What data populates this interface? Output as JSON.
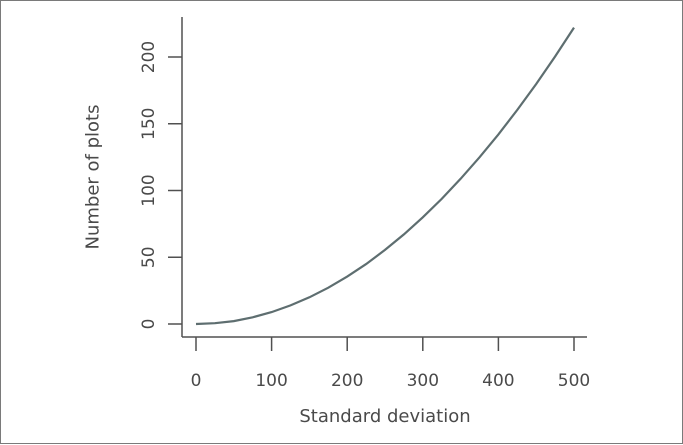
{
  "chart_data": {
    "type": "line",
    "title": "",
    "xlabel": "Standard deviation",
    "ylabel": "Number of plots",
    "xlim": [
      -15,
      515
    ],
    "ylim": [
      -4,
      225
    ],
    "x_ticks": [
      0,
      100,
      200,
      300,
      400,
      500
    ],
    "y_ticks": [
      0,
      50,
      100,
      150,
      200
    ],
    "grid": false,
    "legend": "none",
    "line_color": "#5e6e70",
    "series": [
      {
        "x": [
          0,
          25,
          50,
          75,
          100,
          125,
          150,
          175,
          200,
          225,
          250,
          275,
          300,
          325,
          350,
          375,
          400,
          425,
          450,
          475,
          500
        ],
        "y": [
          0,
          0.6,
          2.2,
          5.0,
          8.9,
          13.9,
          20.0,
          27.2,
          35.5,
          44.9,
          55.5,
          67.1,
          79.9,
          93.7,
          108.8,
          124.9,
          142.0,
          160.4,
          179.8,
          200.4,
          222.0
        ]
      }
    ]
  }
}
